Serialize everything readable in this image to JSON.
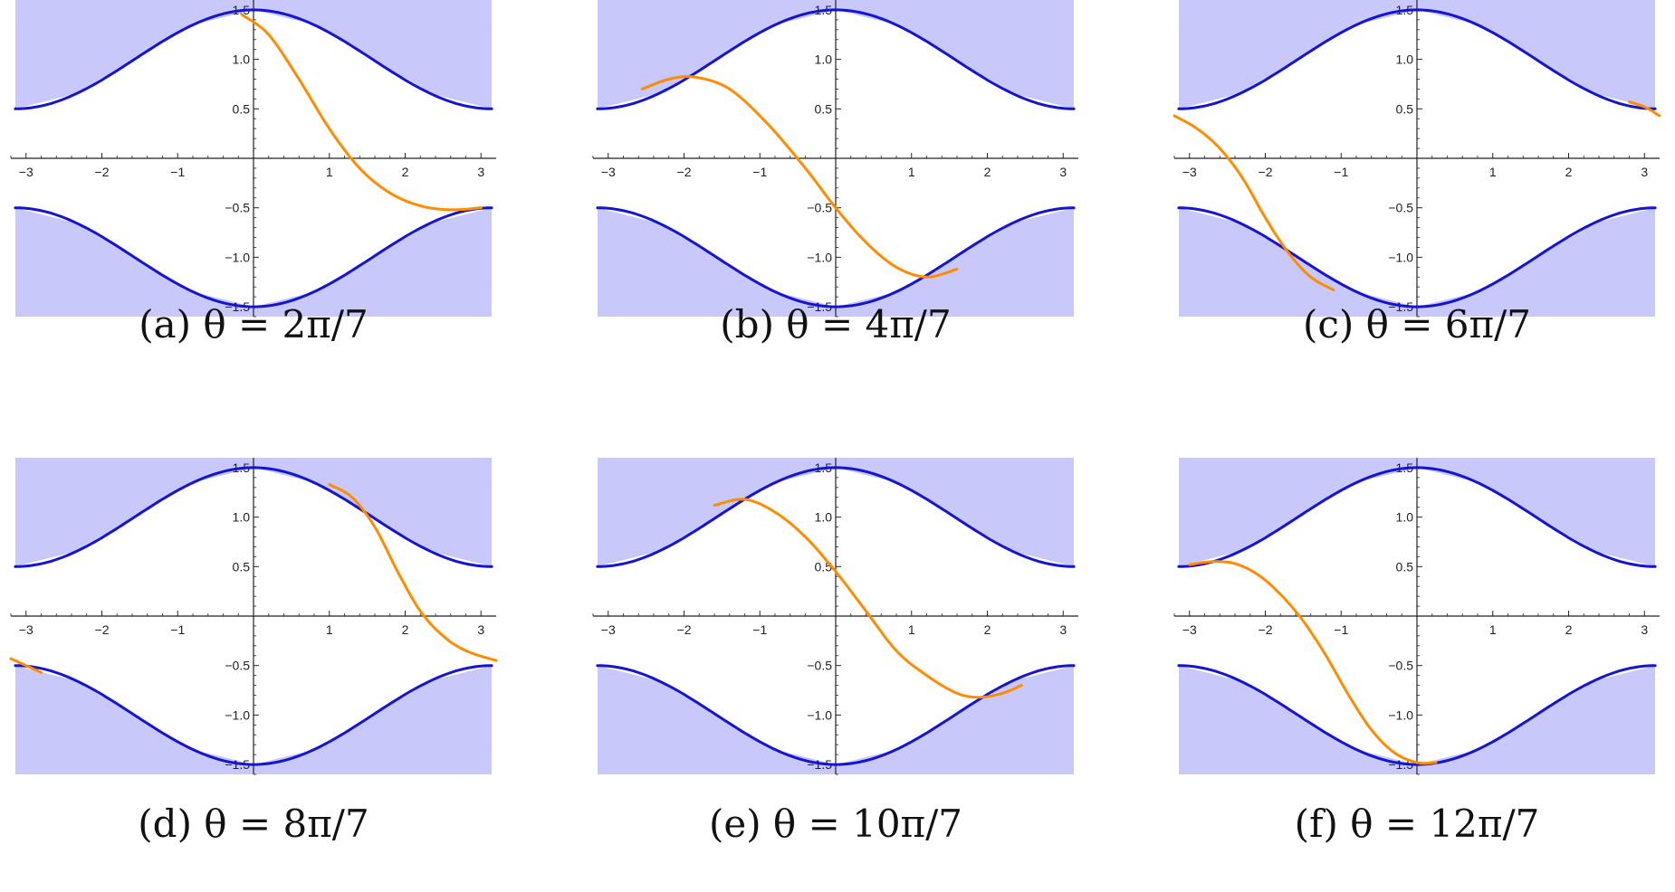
{
  "figure": {
    "colors": {
      "band_fill": "#c8c8fa",
      "boundary": "#1414d2",
      "trajectory": "#ff8c00",
      "axes": "#222222"
    },
    "ylim": [
      -1.6,
      1.6
    ],
    "panels": [
      {
        "caption": "(a) θ = 2π/7"
      },
      {
        "caption": "(b) θ = 4π/7"
      },
      {
        "caption": "(c) θ = 6π/7"
      },
      {
        "caption": "(d) θ = 8π/7"
      },
      {
        "caption": "(e) θ = 10π/7"
      },
      {
        "caption": "(f) θ = 12π/7"
      }
    ]
  },
  "chart_data": [
    {
      "type": "line",
      "title": "(a) θ = 2π/7",
      "xlim": [
        -3.2,
        3.2
      ],
      "ylim": [
        -1.6,
        1.6
      ],
      "x_ticks": [
        -3,
        -2,
        -1,
        1,
        2,
        3
      ],
      "y_ticks": [
        1.5,
        1.0,
        0.5,
        -0.5,
        -1.0,
        -1.5
      ],
      "x_tick_labels": [
        "−3",
        "−2",
        "−1",
        "1",
        "2",
        "3"
      ],
      "y_tick_labels": [
        "1.5",
        "1.0",
        "0.5",
        "−0.5",
        "−1.0",
        "−1.5"
      ],
      "series": [
        {
          "role": "upper_boundary",
          "x": [
            -3.14,
            -2.36,
            -1.57,
            -0.79,
            0,
            0.79,
            1.57,
            2.36,
            3.14
          ],
          "y": [
            0.5,
            0.65,
            1.0,
            1.35,
            1.5,
            1.35,
            1.0,
            0.65,
            0.5
          ]
        },
        {
          "role": "lower_boundary",
          "x": [
            -3.14,
            -2.36,
            -1.57,
            -0.79,
            0,
            0.79,
            1.57,
            2.36,
            3.14
          ],
          "y": [
            -0.5,
            -0.65,
            -1.0,
            -1.35,
            -1.5,
            -1.35,
            -1.0,
            -0.65,
            -0.5
          ]
        },
        {
          "role": "trajectory",
          "x": [
            -0.15,
            0.2,
            0.6,
            1.0,
            1.4,
            1.8,
            2.2,
            2.6,
            3.0
          ],
          "y": [
            1.45,
            1.25,
            0.8,
            0.3,
            -0.1,
            -0.35,
            -0.48,
            -0.52,
            -0.5
          ]
        }
      ]
    },
    {
      "type": "line",
      "title": "(b) θ = 4π/7",
      "xlim": [
        -3.2,
        3.2
      ],
      "ylim": [
        -1.6,
        1.6
      ],
      "x_ticks": [
        -3,
        -2,
        -1,
        1,
        2,
        3
      ],
      "y_ticks": [
        1.5,
        1.0,
        0.5,
        -0.5,
        -1.0,
        -1.5
      ],
      "x_tick_labels": [
        "−3",
        "−2",
        "−1",
        "1",
        "2",
        "3"
      ],
      "y_tick_labels": [
        "1.5",
        "1.0",
        "0.5",
        "−0.5",
        "−1.0",
        "−1.5"
      ],
      "series": [
        {
          "role": "upper_boundary",
          "x": [
            -3.14,
            -2.36,
            -1.57,
            -0.79,
            0,
            0.79,
            1.57,
            2.36,
            3.14
          ],
          "y": [
            0.5,
            0.65,
            1.0,
            1.35,
            1.5,
            1.35,
            1.0,
            0.65,
            0.5
          ]
        },
        {
          "role": "lower_boundary",
          "x": [
            -3.14,
            -2.36,
            -1.57,
            -0.79,
            0,
            0.79,
            1.57,
            2.36,
            3.14
          ],
          "y": [
            -0.5,
            -0.65,
            -1.0,
            -1.35,
            -1.5,
            -1.35,
            -1.0,
            -0.65,
            -0.5
          ]
        },
        {
          "role": "trajectory",
          "x": [
            -2.55,
            -2.2,
            -1.85,
            -1.4,
            -0.9,
            -0.4,
            0,
            0.4,
            0.8,
            1.2,
            1.6
          ],
          "y": [
            0.7,
            0.8,
            0.82,
            0.7,
            0.35,
            -0.1,
            -0.5,
            -0.85,
            -1.1,
            -1.2,
            -1.12
          ]
        }
      ]
    },
    {
      "type": "line",
      "title": "(c) θ = 6π/7",
      "xlim": [
        -3.2,
        3.2
      ],
      "ylim": [
        -1.6,
        1.6
      ],
      "x_ticks": [
        -3,
        -2,
        -1,
        1,
        2,
        3
      ],
      "y_ticks": [
        1.5,
        1.0,
        0.5,
        -0.5,
        -1.0,
        -1.5
      ],
      "x_tick_labels": [
        "−3",
        "−2",
        "−1",
        "1",
        "2",
        "3"
      ],
      "y_tick_labels": [
        "1.5",
        "1.0",
        "0.5",
        "−0.5",
        "−1.0",
        "−1.5"
      ],
      "series": [
        {
          "role": "upper_boundary",
          "x": [
            -3.14,
            -2.36,
            -1.57,
            -0.79,
            0,
            0.79,
            1.57,
            2.36,
            3.14
          ],
          "y": [
            0.5,
            0.65,
            1.0,
            1.35,
            1.5,
            1.35,
            1.0,
            0.65,
            0.5
          ]
        },
        {
          "role": "lower_boundary",
          "x": [
            -3.14,
            -2.36,
            -1.57,
            -0.79,
            0,
            0.79,
            1.57,
            2.36,
            3.14
          ],
          "y": [
            -0.5,
            -0.65,
            -1.0,
            -1.35,
            -1.5,
            -1.35,
            -1.0,
            -0.65,
            -0.5
          ]
        },
        {
          "role": "trajectory_left",
          "x": [
            -3.2,
            -2.9,
            -2.6,
            -2.3,
            -2.0,
            -1.7,
            -1.4,
            -1.1
          ],
          "y": [
            0.43,
            0.3,
            0.1,
            -0.2,
            -0.6,
            -0.95,
            -1.2,
            -1.33
          ]
        },
        {
          "role": "trajectory_right",
          "x": [
            2.8,
            3.0,
            3.2
          ],
          "y": [
            0.57,
            0.52,
            0.43
          ]
        }
      ]
    },
    {
      "type": "line",
      "title": "(d) θ = 8π/7",
      "xlim": [
        -3.2,
        3.2
      ],
      "ylim": [
        -1.6,
        1.6
      ],
      "x_ticks": [
        -3,
        -2,
        -1,
        1,
        2,
        3
      ],
      "y_ticks": [
        1.5,
        1.0,
        0.5,
        -0.5,
        -1.0,
        -1.5
      ],
      "x_tick_labels": [
        "−3",
        "−2",
        "−1",
        "1",
        "2",
        "3"
      ],
      "y_tick_labels": [
        "1.5",
        "1.0",
        "0.5",
        "−0.5",
        "−1.0",
        "−1.5"
      ],
      "series": [
        {
          "role": "upper_boundary",
          "x": [
            -3.14,
            -2.36,
            -1.57,
            -0.79,
            0,
            0.79,
            1.57,
            2.36,
            3.14
          ],
          "y": [
            0.5,
            0.65,
            1.0,
            1.35,
            1.5,
            1.35,
            1.0,
            0.65,
            0.5
          ]
        },
        {
          "role": "lower_boundary",
          "x": [
            -3.14,
            -2.36,
            -1.57,
            -0.79,
            0,
            0.79,
            1.57,
            2.36,
            3.14
          ],
          "y": [
            -0.5,
            -0.65,
            -1.0,
            -1.35,
            -1.5,
            -1.35,
            -1.0,
            -0.65,
            -0.5
          ]
        },
        {
          "role": "trajectory_right",
          "x": [
            1.0,
            1.3,
            1.6,
            1.9,
            2.2,
            2.5,
            2.8,
            3.2
          ],
          "y": [
            1.33,
            1.2,
            0.9,
            0.45,
            0.05,
            -0.2,
            -0.35,
            -0.45
          ]
        },
        {
          "role": "trajectory_left",
          "x": [
            -3.2,
            -3.0,
            -2.8
          ],
          "y": [
            -0.43,
            -0.5,
            -0.57
          ]
        }
      ]
    },
    {
      "type": "line",
      "title": "(e) θ = 10π/7",
      "xlim": [
        -3.2,
        3.2
      ],
      "ylim": [
        -1.6,
        1.6
      ],
      "x_ticks": [
        -3,
        -2,
        -1,
        1,
        2,
        3
      ],
      "y_ticks": [
        1.5,
        1.0,
        0.5,
        -0.5,
        -1.0,
        -1.5
      ],
      "x_tick_labels": [
        "−3",
        "−2",
        "−1",
        "1",
        "2",
        "3"
      ],
      "y_tick_labels": [
        "1.5",
        "1.0",
        "0.5",
        "−0.5",
        "−1.0",
        "−1.5"
      ],
      "series": [
        {
          "role": "upper_boundary",
          "x": [
            -3.14,
            -2.36,
            -1.57,
            -0.79,
            0,
            0.79,
            1.57,
            2.36,
            3.14
          ],
          "y": [
            0.5,
            0.65,
            1.0,
            1.35,
            1.5,
            1.35,
            1.0,
            0.65,
            0.5
          ]
        },
        {
          "role": "lower_boundary",
          "x": [
            -3.14,
            -2.36,
            -1.57,
            -0.79,
            0,
            0.79,
            1.57,
            2.36,
            3.14
          ],
          "y": [
            -0.5,
            -0.65,
            -1.0,
            -1.35,
            -1.5,
            -1.35,
            -1.0,
            -0.65,
            -0.5
          ]
        },
        {
          "role": "trajectory",
          "x": [
            -1.6,
            -1.2,
            -0.8,
            -0.4,
            0,
            0.4,
            0.8,
            1.2,
            1.6,
            1.9,
            2.2,
            2.45
          ],
          "y": [
            1.12,
            1.18,
            1.05,
            0.8,
            0.45,
            0.05,
            -0.35,
            -0.6,
            -0.78,
            -0.82,
            -0.78,
            -0.7
          ]
        }
      ]
    },
    {
      "type": "line",
      "title": "(f) θ = 12π/7",
      "xlim": [
        -3.2,
        3.2
      ],
      "ylim": [
        -1.6,
        1.6
      ],
      "x_ticks": [
        -3,
        -2,
        -1,
        1,
        2,
        3
      ],
      "y_ticks": [
        1.5,
        1.0,
        0.5,
        -0.5,
        -1.0,
        -1.5
      ],
      "x_tick_labels": [
        "−3",
        "−2",
        "−1",
        "1",
        "2",
        "3"
      ],
      "y_tick_labels": [
        "1.5",
        "1.0",
        "0.5",
        "−0.5",
        "−1.0",
        "−1.5"
      ],
      "series": [
        {
          "role": "upper_boundary",
          "x": [
            -3.14,
            -2.36,
            -1.57,
            -0.79,
            0,
            0.79,
            1.57,
            2.36,
            3.14
          ],
          "y": [
            0.5,
            0.65,
            1.0,
            1.35,
            1.5,
            1.35,
            1.0,
            0.65,
            0.5
          ]
        },
        {
          "role": "lower_boundary",
          "x": [
            -3.14,
            -2.36,
            -1.57,
            -0.79,
            0,
            0.79,
            1.57,
            2.36,
            3.14
          ],
          "y": [
            -0.5,
            -0.65,
            -1.0,
            -1.35,
            -1.5,
            -1.35,
            -1.0,
            -0.65,
            -0.5
          ]
        },
        {
          "role": "trajectory",
          "x": [
            -3.0,
            -2.7,
            -2.4,
            -2.1,
            -1.8,
            -1.5,
            -1.2,
            -0.9,
            -0.6,
            -0.3,
            0,
            0.25
          ],
          "y": [
            0.52,
            0.55,
            0.53,
            0.42,
            0.22,
            -0.05,
            -0.4,
            -0.8,
            -1.15,
            -1.38,
            -1.48,
            -1.48
          ]
        }
      ]
    }
  ]
}
